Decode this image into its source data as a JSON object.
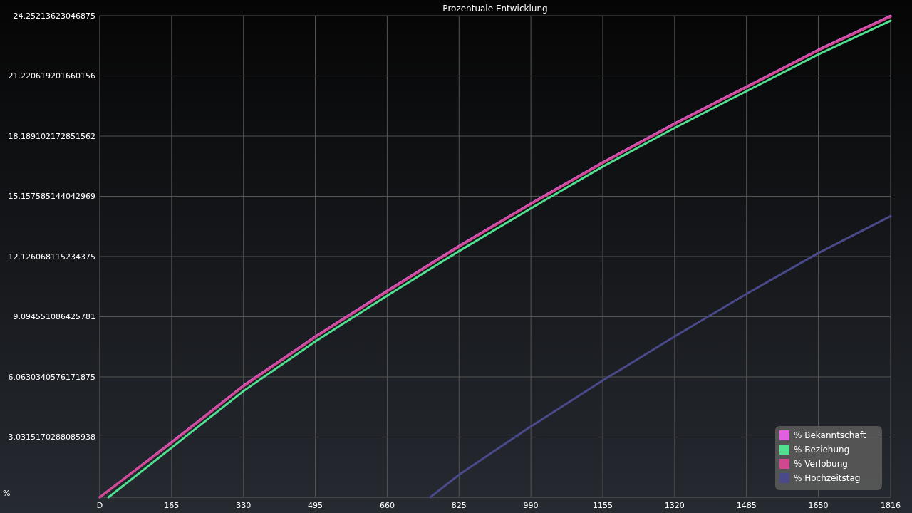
{
  "chart_data": {
    "type": "line",
    "title": "Prozentuale Entwicklung",
    "xlabel": "D",
    "ylabel": "%",
    "xlim": [
      0,
      1816
    ],
    "xticks": [
      165,
      330,
      495,
      660,
      825,
      990,
      1155,
      1320,
      1485,
      1650,
      1816
    ],
    "ylim": [
      0,
      24.25213623046875
    ],
    "yticks": [
      3.0315170288085938,
      6.0630340576171875,
      9.094551086425781,
      12.126068115234375,
      15.157585144042969,
      18.189102172851562,
      21.220619201660156,
      24.25213623046875
    ],
    "grid": true,
    "legend": "bottom right",
    "marker": "none",
    "line_style": "solid",
    "series": [
      {
        "name": "% Bekanntschaft",
        "color": "#e060e0",
        "x": [
          0,
          165,
          330,
          495,
          660,
          825,
          990,
          1155,
          1320,
          1485,
          1650,
          1816
        ],
        "values": [
          0,
          2.78,
          5.63,
          8.1,
          10.4,
          12.66,
          14.8,
          16.87,
          18.83,
          20.68,
          22.54,
          24.25
        ]
      },
      {
        "name": "% Beziehung",
        "color": "#50e090",
        "x": [
          20,
          165,
          330,
          495,
          660,
          825,
          990,
          1155,
          1320,
          1485,
          1650,
          1816
        ],
        "values": [
          0,
          2.5,
          5.35,
          7.85,
          10.15,
          12.4,
          14.55,
          16.65,
          18.6,
          20.45,
          22.3,
          24.0
        ]
      },
      {
        "name": "% Verlobung",
        "color": "#d04890",
        "x": [
          0,
          165,
          330,
          495,
          660,
          825,
          990,
          1155,
          1320,
          1485,
          1650,
          1816
        ],
        "values": [
          0,
          2.74,
          5.59,
          8.06,
          10.36,
          12.62,
          14.76,
          16.83,
          18.79,
          20.64,
          22.5,
          24.2
        ]
      },
      {
        "name": "% Hochzeitstag",
        "color": "#4a4a8a",
        "x": [
          759,
          825,
          990,
          1155,
          1320,
          1485,
          1650,
          1816
        ],
        "values": [
          0,
          1.14,
          3.57,
          5.88,
          8.1,
          10.24,
          12.3,
          14.16
        ]
      }
    ]
  }
}
